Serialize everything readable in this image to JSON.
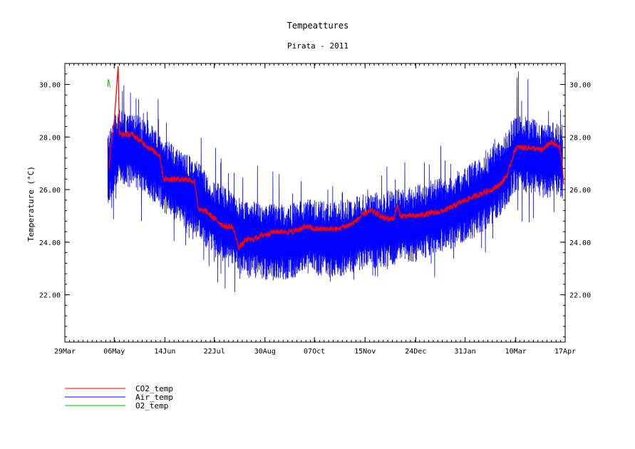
{
  "chart_data": {
    "type": "line",
    "title": "Tempeattures",
    "subtitle": "Pirata - 2011",
    "ylabel": "Temperature (°C)",
    "xlabel": "",
    "x_start": "2011-03-29",
    "x_end": "2012-04-17",
    "ylim": [
      20.2,
      30.8
    ],
    "x_ticks": [
      {
        "date": "2011-03-29",
        "label": "29Mar"
      },
      {
        "date": "2011-05-06",
        "label": "06May"
      },
      {
        "date": "2011-06-14",
        "label": "14Jun"
      },
      {
        "date": "2011-07-22",
        "label": "22Jul"
      },
      {
        "date": "2011-08-30",
        "label": "30Aug"
      },
      {
        "date": "2011-10-07",
        "label": "07Oct"
      },
      {
        "date": "2011-11-15",
        "label": "15Nov"
      },
      {
        "date": "2011-12-24",
        "label": "24Dec"
      },
      {
        "date": "2012-01-31",
        "label": "31Jan"
      },
      {
        "date": "2012-03-10",
        "label": "10Mar"
      },
      {
        "date": "2012-04-17",
        "label": "17Apr"
      }
    ],
    "y_ticks": [
      {
        "value": 22,
        "label": "22.00"
      },
      {
        "value": 24,
        "label": "24.00"
      },
      {
        "value": 26,
        "label": "26.00"
      },
      {
        "value": 28,
        "label": "28.00"
      },
      {
        "value": 30,
        "label": "30.00"
      }
    ],
    "grid": false,
    "legend_position": "bottom-left",
    "series": [
      {
        "name": "CO2_temp",
        "color": "#ff0000",
        "x": [
          "2011-05-02",
          "2011-05-04",
          "2011-05-06",
          "2011-05-09",
          "2011-05-10",
          "2011-05-12",
          "2011-05-20",
          "2011-05-30",
          "2011-06-10",
          "2011-06-13",
          "2011-06-16",
          "2011-06-22",
          "2011-07-01",
          "2011-07-07",
          "2011-07-10",
          "2011-07-12",
          "2011-07-15",
          "2011-07-22",
          "2011-07-30",
          "2011-08-05",
          "2011-08-10",
          "2011-08-14",
          "2011-08-16",
          "2011-08-20",
          "2011-08-30",
          "2011-09-07",
          "2011-09-20",
          "2011-10-01",
          "2011-10-07",
          "2011-10-15",
          "2011-10-25",
          "2011-11-05",
          "2011-11-15",
          "2011-11-20",
          "2011-11-30",
          "2011-12-07",
          "2011-12-10",
          "2011-12-12",
          "2011-12-15",
          "2011-12-24",
          "2012-01-05",
          "2012-01-15",
          "2012-01-31",
          "2012-02-10",
          "2012-02-20",
          "2012-02-27",
          "2012-03-04",
          "2012-03-06",
          "2012-03-10",
          "2012-03-20",
          "2012-03-30",
          "2012-04-06",
          "2012-04-13",
          "2012-04-15",
          "2012-04-16"
        ],
        "y": [
          26.8,
          28.0,
          28.6,
          30.7,
          28.1,
          28.1,
          28.1,
          27.7,
          27.3,
          26.4,
          26.4,
          26.4,
          26.4,
          26.3,
          25.2,
          25.2,
          25.2,
          24.9,
          24.6,
          24.6,
          23.8,
          24.0,
          24.1,
          24.1,
          24.3,
          24.4,
          24.4,
          24.6,
          24.5,
          24.5,
          24.5,
          24.7,
          25.1,
          25.2,
          24.9,
          24.9,
          25.4,
          25.0,
          25.0,
          25.0,
          25.1,
          25.2,
          25.6,
          25.8,
          26.0,
          26.2,
          26.6,
          27.0,
          27.6,
          27.6,
          27.5,
          27.8,
          27.6,
          26.8,
          26.1
        ]
      },
      {
        "name": "Air_temp",
        "color": "#0000ff",
        "x": [
          "2011-05-01",
          "2011-05-10",
          "2011-05-20",
          "2011-06-01",
          "2011-06-14",
          "2011-06-25",
          "2011-07-05",
          "2011-07-15",
          "2011-07-22",
          "2011-08-01",
          "2011-08-15",
          "2011-08-30",
          "2011-09-15",
          "2011-10-01",
          "2011-10-07",
          "2011-10-20",
          "2011-11-01",
          "2011-11-15",
          "2011-12-01",
          "2011-12-15",
          "2011-12-24",
          "2012-01-10",
          "2012-01-31",
          "2012-02-15",
          "2012-03-01",
          "2012-03-10",
          "2012-03-20",
          "2012-04-01",
          "2012-04-10",
          "2012-04-15"
        ],
        "y": [
          26.8,
          27.6,
          27.5,
          27.2,
          26.5,
          26.1,
          25.8,
          25.3,
          24.9,
          24.6,
          24.2,
          24.0,
          24.0,
          24.2,
          24.2,
          24.1,
          24.2,
          24.4,
          24.5,
          24.6,
          24.7,
          25.0,
          25.4,
          25.9,
          26.6,
          27.4,
          27.3,
          27.1,
          27.2,
          27.0
        ]
      },
      {
        "name": "O2_temp",
        "color": "#00c000",
        "x": [
          "2011-05-01",
          "2011-05-01",
          "2011-05-02"
        ],
        "y": [
          29.9,
          30.2,
          29.9
        ]
      }
    ]
  }
}
